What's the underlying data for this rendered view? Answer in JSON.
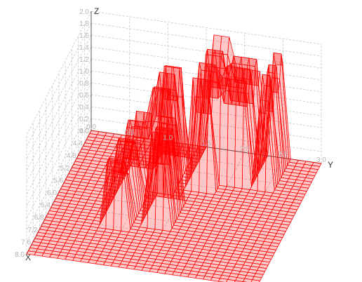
{
  "chart_data": {
    "type": "surface",
    "title": "",
    "axes": {
      "x": {
        "label": "X",
        "range": [
          4.0,
          8.0
        ],
        "ticks": [
          "4.0",
          "4.4",
          "4.8",
          "5.2",
          "5.6",
          "6.0",
          "6.4",
          "6.8",
          "7.2",
          "7.6",
          "8.0"
        ]
      },
      "y": {
        "label": "Y",
        "range": [
          0.0,
          3.0
        ],
        "ticks": [
          "0.0",
          "0.5",
          "1.0",
          "1.5",
          "2.0",
          "2.5",
          "3.0"
        ]
      },
      "z": {
        "label": "Z",
        "range": [
          0.0,
          2.0
        ],
        "ticks": [
          "0.0",
          "0.2",
          "0.4",
          "0.6",
          "0.8",
          "1.0",
          "1.2",
          "1.4",
          "1.6",
          "1.8",
          "2.0"
        ]
      }
    },
    "grid": true,
    "series_color": "#ff0000",
    "baseline_z": 0.0,
    "ridges": [
      {
        "x": [
          5.0,
          6.8
        ],
        "y": [
          0.75,
          1.05
        ],
        "zmax": 1.1
      },
      {
        "x": [
          4.5,
          5.5
        ],
        "y": [
          1.1,
          1.3
        ],
        "zmax": 1.7
      },
      {
        "x": [
          5.8,
          6.6
        ],
        "y": [
          1.3,
          1.55
        ],
        "zmax": 1.5
      },
      {
        "x": [
          4.0,
          5.3
        ],
        "y": [
          1.6,
          1.8
        ],
        "zmax": 1.9
      },
      {
        "x": [
          4.0,
          5.0
        ],
        "y": [
          1.9,
          2.25
        ],
        "zmax": 1.75
      },
      {
        "x": [
          4.0,
          5.0
        ],
        "y": [
          2.35,
          2.5
        ],
        "zmax": 1.8
      }
    ]
  }
}
